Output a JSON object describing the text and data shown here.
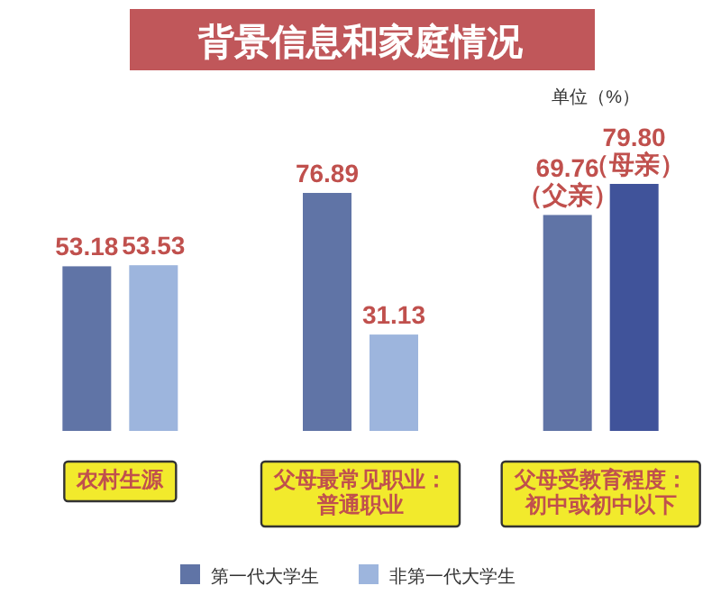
{
  "chart_data": {
    "type": "bar",
    "title": "背景信息和家庭情况",
    "annotations": [
      "单位（%）"
    ],
    "categories": [
      "农村生源",
      "父母最常见职业：普通职业",
      "父母受教育程度：初中或初中以下"
    ],
    "legend": "bottom",
    "series": [
      {
        "name": "第一代大学生",
        "color": "#6074a6",
        "values": [
          53.18,
          76.89,
          null
        ],
        "value_labels": [
          "53.18",
          "76.89",
          null
        ]
      },
      {
        "name": "非第一代大学生",
        "color": "#9db5dd",
        "values": [
          53.53,
          31.13,
          null
        ],
        "value_labels": [
          "53.53",
          "31.13",
          null
        ]
      },
      {
        "color": "#6074a6",
        "values": [
          null,
          null,
          69.76
        ],
        "value_labels": [
          null,
          null,
          "69.76\n（父亲）"
        ]
      },
      {
        "color": "#40539a",
        "values": [
          null,
          null,
          79.8
        ],
        "value_labels": [
          null,
          null,
          "79.80\n（母亲）"
        ]
      }
    ]
  }
}
